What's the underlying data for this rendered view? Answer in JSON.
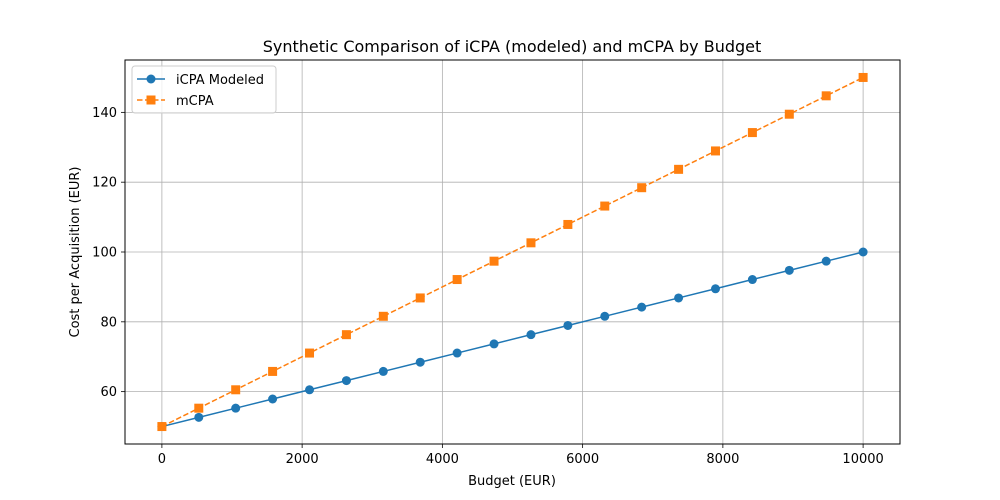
{
  "chart_data": {
    "type": "line",
    "title": "Synthetic Comparison of iCPA (modeled) and mCPA by Budget",
    "xlabel": "Budget (EUR)",
    "ylabel": "Cost per Acquisition (EUR)",
    "xlim": [
      -526,
      10526
    ],
    "ylim": [
      45,
      155
    ],
    "xticks": [
      0,
      2000,
      4000,
      6000,
      8000,
      10000
    ],
    "yticks": [
      60,
      80,
      100,
      120,
      140
    ],
    "grid": true,
    "legend_position": "top-left",
    "x": [
      0,
      526.3,
      1052.6,
      1578.9,
      2105.3,
      2631.6,
      3157.9,
      3684.2,
      4210.5,
      4736.8,
      5263.2,
      5789.5,
      6315.8,
      6842.1,
      7368.4,
      7894.7,
      8421.1,
      8947.4,
      9473.7,
      10000
    ],
    "series": [
      {
        "name": "iCPA Modeled",
        "color": "#1f77b4",
        "line_style": "solid",
        "marker": "circle",
        "values": [
          50.0,
          52.63,
          55.26,
          57.89,
          60.53,
          63.16,
          65.79,
          68.42,
          71.05,
          73.68,
          76.32,
          78.95,
          81.58,
          84.21,
          86.84,
          89.47,
          92.11,
          94.74,
          97.37,
          100.0
        ]
      },
      {
        "name": "mCPA",
        "color": "#ff7f0e",
        "line_style": "dashed",
        "marker": "square",
        "values": [
          50.0,
          55.26,
          60.53,
          65.79,
          71.05,
          76.32,
          81.58,
          86.84,
          92.11,
          97.37,
          102.63,
          107.89,
          113.16,
          118.42,
          123.68,
          128.95,
          134.21,
          139.47,
          144.74,
          150.0
        ]
      }
    ]
  }
}
